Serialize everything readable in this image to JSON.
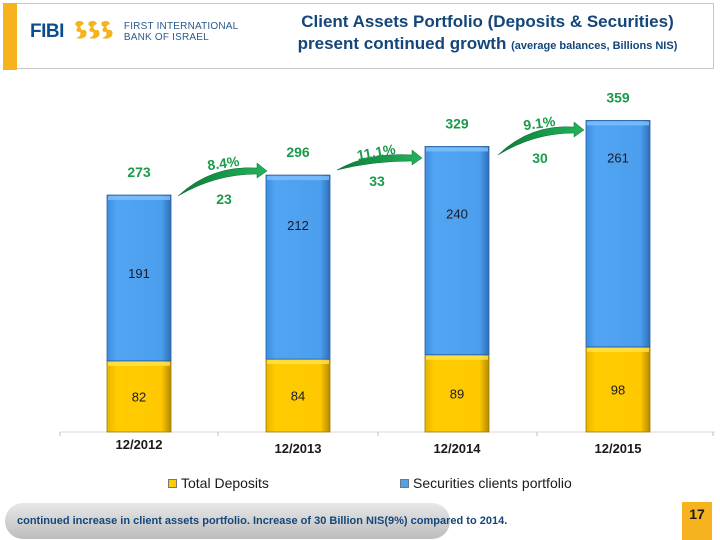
{
  "header": {
    "logo_short": "FIBI",
    "logo_line1": "FIRST INTERNATIONAL",
    "logo_line2": "BANK OF ISRAEL",
    "title_line1": "Client Assets Portfolio (Deposits & Securities)",
    "title_line2_main": "present continued growth ",
    "title_line2_sub": "(average balances, Billions NIS)",
    "accent_color": "#f7b31d",
    "title_color": "#14467a"
  },
  "chart_data": {
    "type": "bar",
    "stacked": true,
    "title": "Client Assets Portfolio (Deposits & Securities) present continued growth",
    "subtitle": "(average balances, Billions NIS)",
    "xlabel": "",
    "ylabel": "",
    "categories": [
      "12/2012",
      "12/2013",
      "12/2014",
      "12/2015"
    ],
    "series": [
      {
        "name": "Total Deposits",
        "values": [
          82,
          84,
          89,
          98
        ],
        "color": "#ffcc00"
      },
      {
        "name": "Securities clients portfolio",
        "values": [
          191,
          212,
          240,
          261
        ],
        "color": "#4ea1ef"
      }
    ],
    "totals": [
      273,
      296,
      329,
      359
    ],
    "growth_annotations": [
      {
        "from": "12/2012",
        "to": "12/2013",
        "percent": "8.4%",
        "delta": "23"
      },
      {
        "from": "12/2013",
        "to": "12/2014",
        "percent": "11.1%",
        "delta": "33"
      },
      {
        "from": "12/2014",
        "to": "12/2015",
        "percent": "9.1%",
        "delta": "30"
      }
    ],
    "ylim": [
      0,
      380
    ],
    "grid": false,
    "legend_position": "bottom",
    "annotation_color": "#1a9a4a"
  },
  "legend": {
    "items": [
      {
        "label": "Total Deposits",
        "color": "#ffcc00"
      },
      {
        "label": "Securities clients portfolio",
        "color": "#4ea1ef"
      }
    ]
  },
  "footer": {
    "text": "continued increase in client assets portfolio. Increase of 30 Billion NIS(9%) compared to 2014.",
    "page_number": "17"
  }
}
